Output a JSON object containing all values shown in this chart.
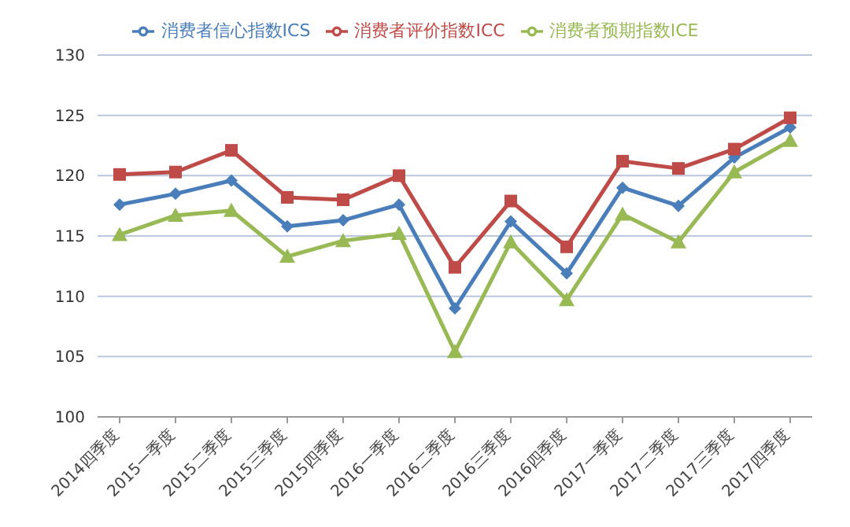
{
  "chart_data": {
    "type": "line",
    "categories": [
      "2014四季度",
      "2015一季度",
      "2015二季度",
      "2015三季度",
      "2015四季度",
      "2016一季度",
      "2016二季度",
      "2016三季度",
      "2016四季度",
      "2017一季度",
      "2017二季度",
      "2017三季度",
      "2017四季度"
    ],
    "series": [
      {
        "name": "消费者信心指数ICS",
        "color": "#4a7ebb",
        "marker": "diamond",
        "values": [
          117.6,
          118.5,
          119.6,
          115.8,
          116.3,
          117.6,
          109,
          116.2,
          111.9,
          119,
          117.5,
          121.5,
          124
        ]
      },
      {
        "name": "消费者评价指数ICC",
        "color": "#be4b48",
        "marker": "square",
        "values": [
          120.1,
          120.3,
          122.1,
          118.2,
          118,
          120,
          112.4,
          117.9,
          114.1,
          121.2,
          120.6,
          122.2,
          124.8
        ]
      },
      {
        "name": "消费者预期指数ICE",
        "color": "#98b954",
        "marker": "triangle",
        "values": [
          115.1,
          116.7,
          117.1,
          113.3,
          114.6,
          115.2,
          105.4,
          114.5,
          109.7,
          116.8,
          114.5,
          120.3,
          122.9
        ]
      }
    ],
    "ylim": [
      100,
      130
    ],
    "yticks": [
      100,
      105,
      110,
      115,
      120,
      125,
      130
    ],
    "grid": "y",
    "legend": "top",
    "line_style": "solid"
  }
}
